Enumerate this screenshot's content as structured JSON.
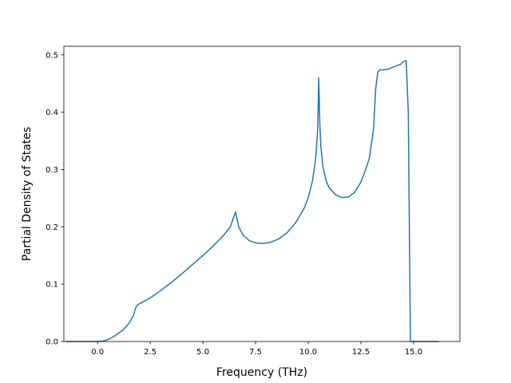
{
  "chart_data": {
    "type": "line",
    "title": "",
    "xlabel": "Frequency (THz)",
    "ylabel": "Partial Density of States",
    "xlim": [
      -1.6,
      17.2
    ],
    "ylim": [
      0.0,
      0.515
    ],
    "grid": false,
    "xticks": [
      0.0,
      2.5,
      5.0,
      7.5,
      10.0,
      12.5,
      15.0
    ],
    "xtick_labels": [
      "0.0",
      "2.5",
      "5.0",
      "7.5",
      "10.0",
      "12.5",
      "15.0"
    ],
    "yticks": [
      0.0,
      0.1,
      0.2,
      0.3,
      0.4,
      0.5
    ],
    "ytick_labels": [
      "0.0",
      "0.1",
      "0.2",
      "0.3",
      "0.4",
      "0.5"
    ],
    "series": [
      {
        "color": "#1f77b4",
        "x": [
          -1.5,
          0.0,
          0.3,
          0.6,
          0.9,
          1.2,
          1.5,
          1.7,
          1.8,
          1.9,
          2.0,
          2.5,
          3.0,
          3.5,
          4.0,
          4.5,
          5.0,
          5.5,
          6.0,
          6.3,
          6.55,
          6.7,
          6.9,
          7.2,
          7.5,
          7.8,
          8.2,
          8.6,
          9.0,
          9.4,
          9.8,
          10.0,
          10.2,
          10.35,
          10.45,
          10.5,
          10.55,
          10.6,
          10.7,
          10.85,
          11.0,
          11.3,
          11.6,
          11.9,
          12.2,
          12.5,
          12.7,
          12.9,
          13.1,
          13.2,
          13.3,
          13.4,
          13.6,
          13.8,
          14.0,
          14.2,
          14.4,
          14.5,
          14.6,
          14.65,
          14.75,
          14.85,
          15.5,
          16.2
        ],
        "y": [
          0.0,
          0.0,
          0.001,
          0.005,
          0.012,
          0.02,
          0.032,
          0.045,
          0.058,
          0.064,
          0.066,
          0.076,
          0.089,
          0.103,
          0.118,
          0.134,
          0.15,
          0.167,
          0.186,
          0.2,
          0.226,
          0.2,
          0.186,
          0.176,
          0.172,
          0.171,
          0.173,
          0.179,
          0.19,
          0.207,
          0.232,
          0.251,
          0.28,
          0.318,
          0.37,
          0.46,
          0.38,
          0.34,
          0.305,
          0.28,
          0.268,
          0.256,
          0.251,
          0.252,
          0.26,
          0.278,
          0.297,
          0.32,
          0.37,
          0.44,
          0.47,
          0.474,
          0.474,
          0.475,
          0.478,
          0.481,
          0.484,
          0.488,
          0.489,
          0.49,
          0.4,
          0.0,
          0.0,
          0.0
        ]
      }
    ]
  }
}
